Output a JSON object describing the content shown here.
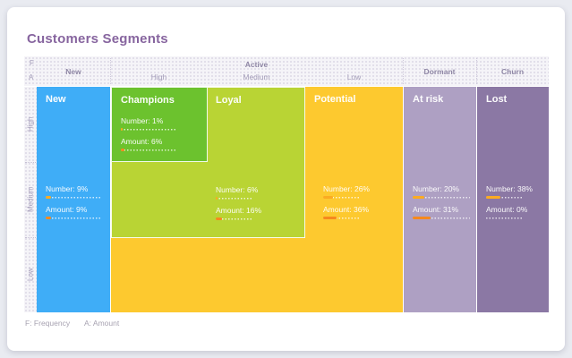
{
  "title": "Customers Segments",
  "header": {
    "f": "F",
    "a": "A",
    "new": "New",
    "active": "Active",
    "high": "High",
    "medium": "Medium",
    "low": "Low",
    "dormant": "Dormant",
    "churn": "Churn"
  },
  "rows": {
    "high": "High",
    "medium": "Medium",
    "low": "Low"
  },
  "stat_labels": {
    "number": "Number:",
    "amount": "Amount:"
  },
  "segments": [
    {
      "id": "new",
      "name": "New",
      "number": "9%",
      "amount": "9%",
      "number_pct": 9,
      "amount_pct": 9
    },
    {
      "id": "champions",
      "name": "Champions",
      "number": "1%",
      "amount": "6%",
      "number_pct": 1,
      "amount_pct": 6
    },
    {
      "id": "loyal",
      "name": "Loyal",
      "number": "6%",
      "amount": "16%",
      "number_pct": 6,
      "amount_pct": 16
    },
    {
      "id": "potential",
      "name": "Potential",
      "number": "26%",
      "amount": "36%",
      "number_pct": 26,
      "amount_pct": 36
    },
    {
      "id": "at_risk",
      "name": "At risk",
      "number": "20%",
      "amount": "31%",
      "number_pct": 20,
      "amount_pct": 31
    },
    {
      "id": "lost",
      "name": "Lost",
      "number": "38%",
      "amount": "0%",
      "number_pct": 38,
      "amount_pct": 0
    }
  ],
  "footer": {
    "frequency": "F: Frequency",
    "amount": "A: Amount"
  },
  "colors": {
    "title": "#87659f",
    "new": "#3fadf7",
    "champions": "#6cc22e",
    "loyal": "#b9d434",
    "potential": "#fdc92f",
    "at_risk": "#aea0c3",
    "lost": "#8b78a4",
    "number_bar_fill": "#fbab22",
    "amount_bar_fill": "#f6891e",
    "band_background": "#f5f4f8"
  },
  "chart_data": {
    "type": "treemap",
    "title": "Customers Segments",
    "axes": {
      "F": "Frequency (columns)",
      "A": "Amount (rows)"
    },
    "frequency_levels": [
      "New",
      "Active High",
      "Active Medium",
      "Active Low",
      "Dormant",
      "Churn"
    ],
    "amount_levels": [
      "High",
      "Medium",
      "Low"
    ],
    "legend": {
      "F": "Frequency",
      "A": "Amount"
    },
    "segments": [
      {
        "name": "New",
        "frequency": "New",
        "amount_span": [
          "High",
          "Medium",
          "Low"
        ],
        "number_pct": 9,
        "amount_pct": 9
      },
      {
        "name": "Champions",
        "frequency": "Active High",
        "amount_span": [
          "High"
        ],
        "number_pct": 1,
        "amount_pct": 6
      },
      {
        "name": "Loyal",
        "frequency": "Active High + Medium",
        "amount_span": [
          "High",
          "Medium"
        ],
        "number_pct": 6,
        "amount_pct": 16
      },
      {
        "name": "Potential",
        "frequency": "Active Low (+Medium/High low)",
        "amount_span": [
          "High",
          "Medium",
          "Low"
        ],
        "number_pct": 26,
        "amount_pct": 36
      },
      {
        "name": "At risk",
        "frequency": "Dormant",
        "amount_span": [
          "High",
          "Medium",
          "Low"
        ],
        "number_pct": 20,
        "amount_pct": 31
      },
      {
        "name": "Lost",
        "frequency": "Churn",
        "amount_span": [
          "High",
          "Medium",
          "Low"
        ],
        "number_pct": 38,
        "amount_pct": 0
      }
    ]
  }
}
